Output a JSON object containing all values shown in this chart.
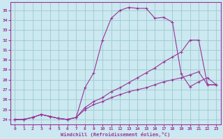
{
  "background_color": "#cce8f0",
  "grid_color": "#99cccc",
  "line_color": "#993399",
  "xlabel": "Windchill (Refroidissement éolien,°C)",
  "xlim": [
    -0.5,
    23.5
  ],
  "ylim": [
    23.5,
    35.8
  ],
  "xticks": [
    0,
    1,
    2,
    3,
    4,
    5,
    6,
    7,
    8,
    9,
    10,
    11,
    12,
    13,
    14,
    15,
    16,
    17,
    18,
    19,
    20,
    21,
    22,
    23
  ],
  "yticks": [
    24,
    25,
    26,
    27,
    28,
    29,
    30,
    31,
    32,
    33,
    34,
    35
  ],
  "series1": [
    24.0,
    24.0,
    24.2,
    24.5,
    24.3,
    24.1,
    24.0,
    24.2,
    27.2,
    28.7,
    32.0,
    34.2,
    35.0,
    35.3,
    35.2,
    35.2,
    34.2,
    34.3,
    33.8,
    28.6,
    27.3,
    27.8,
    28.2,
    27.5
  ],
  "series2": [
    24.0,
    24.0,
    24.2,
    24.5,
    24.3,
    24.1,
    24.0,
    24.2,
    25.2,
    25.8,
    26.2,
    26.8,
    27.2,
    27.7,
    28.2,
    28.7,
    29.2,
    29.8,
    30.3,
    30.8,
    32.0,
    32.0,
    27.5,
    27.5
  ],
  "series3": [
    24.0,
    24.0,
    24.2,
    24.5,
    24.3,
    24.1,
    24.0,
    24.2,
    25.0,
    25.5,
    25.8,
    26.2,
    26.5,
    26.8,
    27.0,
    27.2,
    27.5,
    27.8,
    28.0,
    28.2,
    28.5,
    28.8,
    27.5,
    27.5
  ]
}
